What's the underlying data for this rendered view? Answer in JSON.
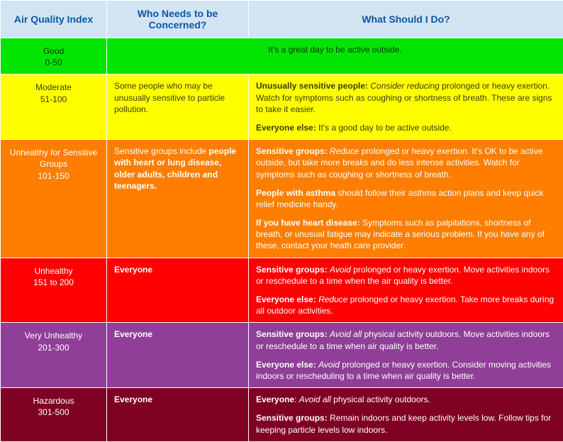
{
  "headers": {
    "index": "Air Quality Index",
    "concern": "Who Needs to be Concerned?",
    "action": "What Should I Do?"
  },
  "column_widths": {
    "index": 150,
    "concern": 200,
    "action": 444
  },
  "header_style": {
    "bg": "#d2e4f2",
    "fg": "#0b57a8",
    "fontsize": 14
  },
  "rows": [
    {
      "id": "good",
      "bg": "#00e400",
      "fg": "#003700",
      "index_label": "Good",
      "index_range": "0-50",
      "merged_message": "It's a great day to be active outside.",
      "concern_text": null,
      "action_paras": null
    },
    {
      "id": "moderate",
      "bg": "#ffff00",
      "fg": "#3b3b00",
      "index_label": "Moderate",
      "index_range": "51-100",
      "merged_message": null,
      "concern_text": "Some people who may be unusually sensitive to particle pollution.",
      "action_paras": [
        [
          {
            "t": "Unusually sensitive people:",
            "b": true
          },
          {
            "t": " "
          },
          {
            "t": "Consider reducing",
            "i": true
          },
          {
            "t": " prolonged or heavy exertion. Watch for symptoms such as coughing or shortness of breath. These are signs to take it easier."
          }
        ],
        [
          {
            "t": "Everyone else:",
            "b": true
          },
          {
            "t": " It's a good day to be active outside."
          }
        ]
      ]
    },
    {
      "id": "usg",
      "bg": "#ff7e00",
      "fg": "#ffffff",
      "index_label": "Unhealthy for Sensitive Groups",
      "index_range": "101-150",
      "merged_message": null,
      "concern_runs": [
        {
          "t": "Sensitive groups include "
        },
        {
          "t": "people with heart or lung disease, older adults, children and teenagers.",
          "b": true
        }
      ],
      "action_paras": [
        [
          {
            "t": "Sensitive groups:",
            "b": true
          },
          {
            "t": " "
          },
          {
            "t": "Reduce",
            "i": true
          },
          {
            "t": " prolonged or heavy exertion. It's OK to be active outside, but take more breaks and do less intense activities. Watch for symptoms such as coughing or shortness of breath."
          }
        ],
        [
          {
            "t": "People with asthma",
            "b": true
          },
          {
            "t": " should follow their asthma action plans and keep quick relief medicine handy."
          }
        ],
        [
          {
            "t": "If you have heart disease:",
            "b": true
          },
          {
            "t": " Symptoms such as palpitations, shortness of breath, or unusual fatigue may indicate a serious problem. If you have any of these, contact your heath care provider."
          }
        ]
      ]
    },
    {
      "id": "unhealthy",
      "bg": "#ff0000",
      "fg": "#ffffff",
      "index_label": "Unhealthy",
      "index_range": "151 to 200",
      "merged_message": null,
      "concern_runs": [
        {
          "t": "Everyone",
          "b": true
        }
      ],
      "action_paras": [
        [
          {
            "t": "Sensitive groups:",
            "b": true
          },
          {
            "t": " "
          },
          {
            "t": "Avoid",
            "i": true
          },
          {
            "t": " prolonged or heavy exertion. Move activities indoors or reschedule to a time when the air quality is better."
          }
        ],
        [
          {
            "t": "Everyone else:",
            "b": true
          },
          {
            "t": " "
          },
          {
            "t": "Reduce",
            "i": true
          },
          {
            "t": " prolonged or heavy exertion. Take more breaks during all outdoor activities."
          }
        ]
      ]
    },
    {
      "id": "veryunhealthy",
      "bg": "#8f3f97",
      "fg": "#ffffff",
      "index_label": "Very Unhealthy",
      "index_range": "201-300",
      "merged_message": null,
      "concern_runs": [
        {
          "t": "Everyone",
          "b": true
        }
      ],
      "action_paras": [
        [
          {
            "t": "Sensitive groups:",
            "b": true
          },
          {
            "t": " "
          },
          {
            "t": "Avoid all",
            "i": true
          },
          {
            "t": " physical activity outdoors. Move activities indoors or reschedule to a time when air quality is better."
          }
        ],
        [
          {
            "t": "Everyone else:",
            "b": true
          },
          {
            "t": " "
          },
          {
            "t": "Avoid",
            "i": true
          },
          {
            "t": " prolonged or heavy exertion. Consider moving activities indoors or rescheduling to a time when air quality is better."
          }
        ]
      ]
    },
    {
      "id": "hazardous",
      "bg": "#7e0023",
      "fg": "#ffffff",
      "index_label": "Hazardous",
      "index_range": "301-500",
      "merged_message": null,
      "concern_runs": [
        {
          "t": "Everyone",
          "b": true
        }
      ],
      "action_paras": [
        [
          {
            "t": "Everyone",
            "b": true
          },
          {
            "t": ": "
          },
          {
            "t": "Avoid all",
            "i": true
          },
          {
            "t": " physical activity outdoors."
          }
        ],
        [
          {
            "t": "Sensitive groups:",
            "b": true
          },
          {
            "t": " Remain indoors and keep activity levels low. Follow tips for keeping particle levels low indoors."
          }
        ]
      ]
    }
  ]
}
